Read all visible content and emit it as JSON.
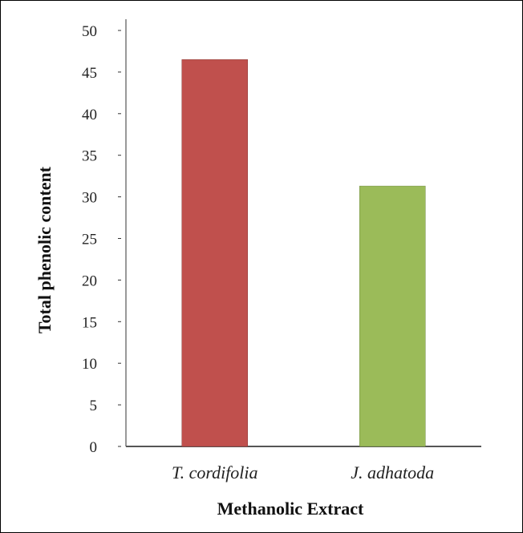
{
  "chart_data": {
    "type": "bar",
    "title": "",
    "xlabel": "Methanolic Extract",
    "ylabel": "Total phenolic content",
    "categories": [
      "T. cordifolia",
      "J. adhatoda"
    ],
    "values": [
      46.5,
      31.3
    ],
    "colors": [
      "#c0504d",
      "#9bbb59"
    ],
    "ylim": [
      0,
      50
    ],
    "yticks": [
      0,
      5,
      10,
      15,
      20,
      25,
      30,
      35,
      40,
      45,
      50
    ],
    "grid": false,
    "legend": "none"
  }
}
